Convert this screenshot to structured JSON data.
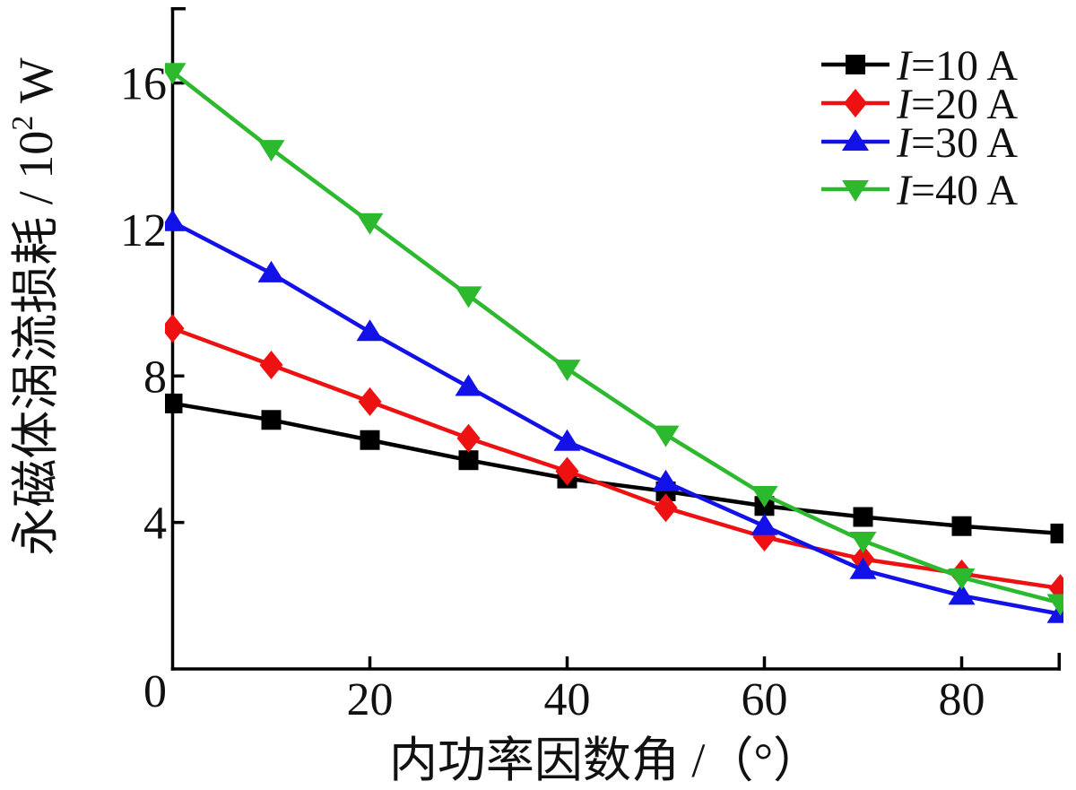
{
  "figure": {
    "background": "#ffffff",
    "axis_color": "#000000",
    "x_axis": {
      "label": "内功率因数角 /（°）",
      "ticks": [
        20,
        40,
        60,
        80
      ],
      "range": [
        0,
        90
      ]
    },
    "y_axis": {
      "label_prefix": "永磁体涡流损耗 / 10",
      "label_sup": "2",
      "label_suffix": " W",
      "ticks": [
        0,
        4,
        8,
        12,
        16
      ],
      "range": [
        0,
        18
      ]
    }
  },
  "chart_data": {
    "type": "line",
    "title": "",
    "xlabel": "内功率因数角 /（°）",
    "ylabel": "永磁体涡流损耗 / 10² W",
    "x": [
      0,
      10,
      20,
      30,
      40,
      50,
      60,
      70,
      80,
      90
    ],
    "xlim": [
      0,
      90
    ],
    "ylim": [
      0,
      18
    ],
    "grid": false,
    "legend_position": "top-right",
    "series": [
      {
        "name": "I=10 A",
        "label_italic": "I",
        "label_rest": "=10 A",
        "color": "#000000",
        "marker": "square",
        "values": [
          7.25,
          6.8,
          6.25,
          5.7,
          5.2,
          4.85,
          4.45,
          4.15,
          3.9,
          3.7
        ]
      },
      {
        "name": "I=20 A",
        "label_italic": "I",
        "label_rest": "=20 A",
        "color": "#ee1111",
        "marker": "diamond",
        "values": [
          9.3,
          8.3,
          7.3,
          6.3,
          5.4,
          4.4,
          3.6,
          3.0,
          2.6,
          2.2
        ]
      },
      {
        "name": "I=30 A",
        "label_italic": "I",
        "label_rest": "=30 A",
        "color": "#1212e8",
        "marker": "triangle-up",
        "values": [
          12.2,
          10.8,
          9.2,
          7.7,
          6.2,
          5.1,
          3.9,
          2.7,
          2.0,
          1.5
        ]
      },
      {
        "name": "I=40 A",
        "label_italic": "I",
        "label_rest": "=40 A",
        "color": "#2db92d",
        "marker": "triangle-down",
        "values": [
          16.3,
          14.2,
          12.2,
          10.2,
          8.2,
          6.4,
          4.75,
          3.5,
          2.5,
          1.8
        ]
      }
    ]
  }
}
